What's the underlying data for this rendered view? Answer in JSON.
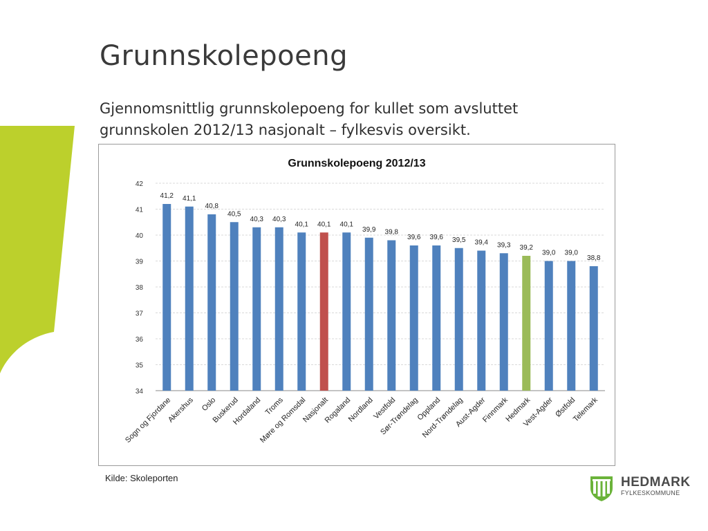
{
  "slide": {
    "title": "Grunnskolepoeng",
    "subtitle_line1": "Gjennomsnittlig grunnskolepoeng for kullet som avsluttet",
    "subtitle_line2": "grunnskolen 2012/13 nasjonalt – fylkesvis oversikt.",
    "source": "Kilde: Skoleporten",
    "accent_color": "#bcd02c"
  },
  "logo": {
    "name": "HEDMARK",
    "subtitle": "FYLKESKOMMUNE",
    "icon": "hedmark-coat-of-arms-icon",
    "color": "#6bb33a"
  },
  "chart_data": {
    "type": "bar",
    "title": "Grunnskolepoeng 2012/13",
    "categories": [
      "Sogn og Fjordane",
      "Akershus",
      "Oslo",
      "Buskerud",
      "Hordaland",
      "Troms",
      "Møre og Romsdal",
      "Nasjonalt",
      "Rogaland",
      "Nordland",
      "Vestfold",
      "Sør-Trøndelag",
      "Oppland",
      "Nord-Trøndelag",
      "Aust-Agder",
      "Finnmark",
      "Hedmark",
      "Vest-Agder",
      "Østfold",
      "Telemark"
    ],
    "values": [
      41.2,
      41.1,
      40.8,
      40.5,
      40.3,
      40.3,
      40.1,
      40.1,
      40.1,
      39.9,
      39.8,
      39.6,
      39.6,
      39.5,
      39.4,
      39.3,
      39.2,
      39.0,
      39.0,
      38.8
    ],
    "data_labels": [
      "41,2",
      "41,1",
      "40,8",
      "40,5",
      "40,3",
      "40,3",
      "40,1",
      "40,1",
      "40,1",
      "39,9",
      "39,8",
      "39,6",
      "39,6",
      "39,5",
      "39,4",
      "39,3",
      "39,2",
      "39,0",
      "39,0",
      "38,8"
    ],
    "yticks": [
      34,
      35,
      36,
      37,
      38,
      39,
      40,
      41,
      42
    ],
    "ylim": [
      34,
      42
    ],
    "grid": true,
    "colors": {
      "default": "#4f81bd",
      "Nasjonalt": "#c0504d",
      "Hedmark": "#9bbb59"
    }
  }
}
